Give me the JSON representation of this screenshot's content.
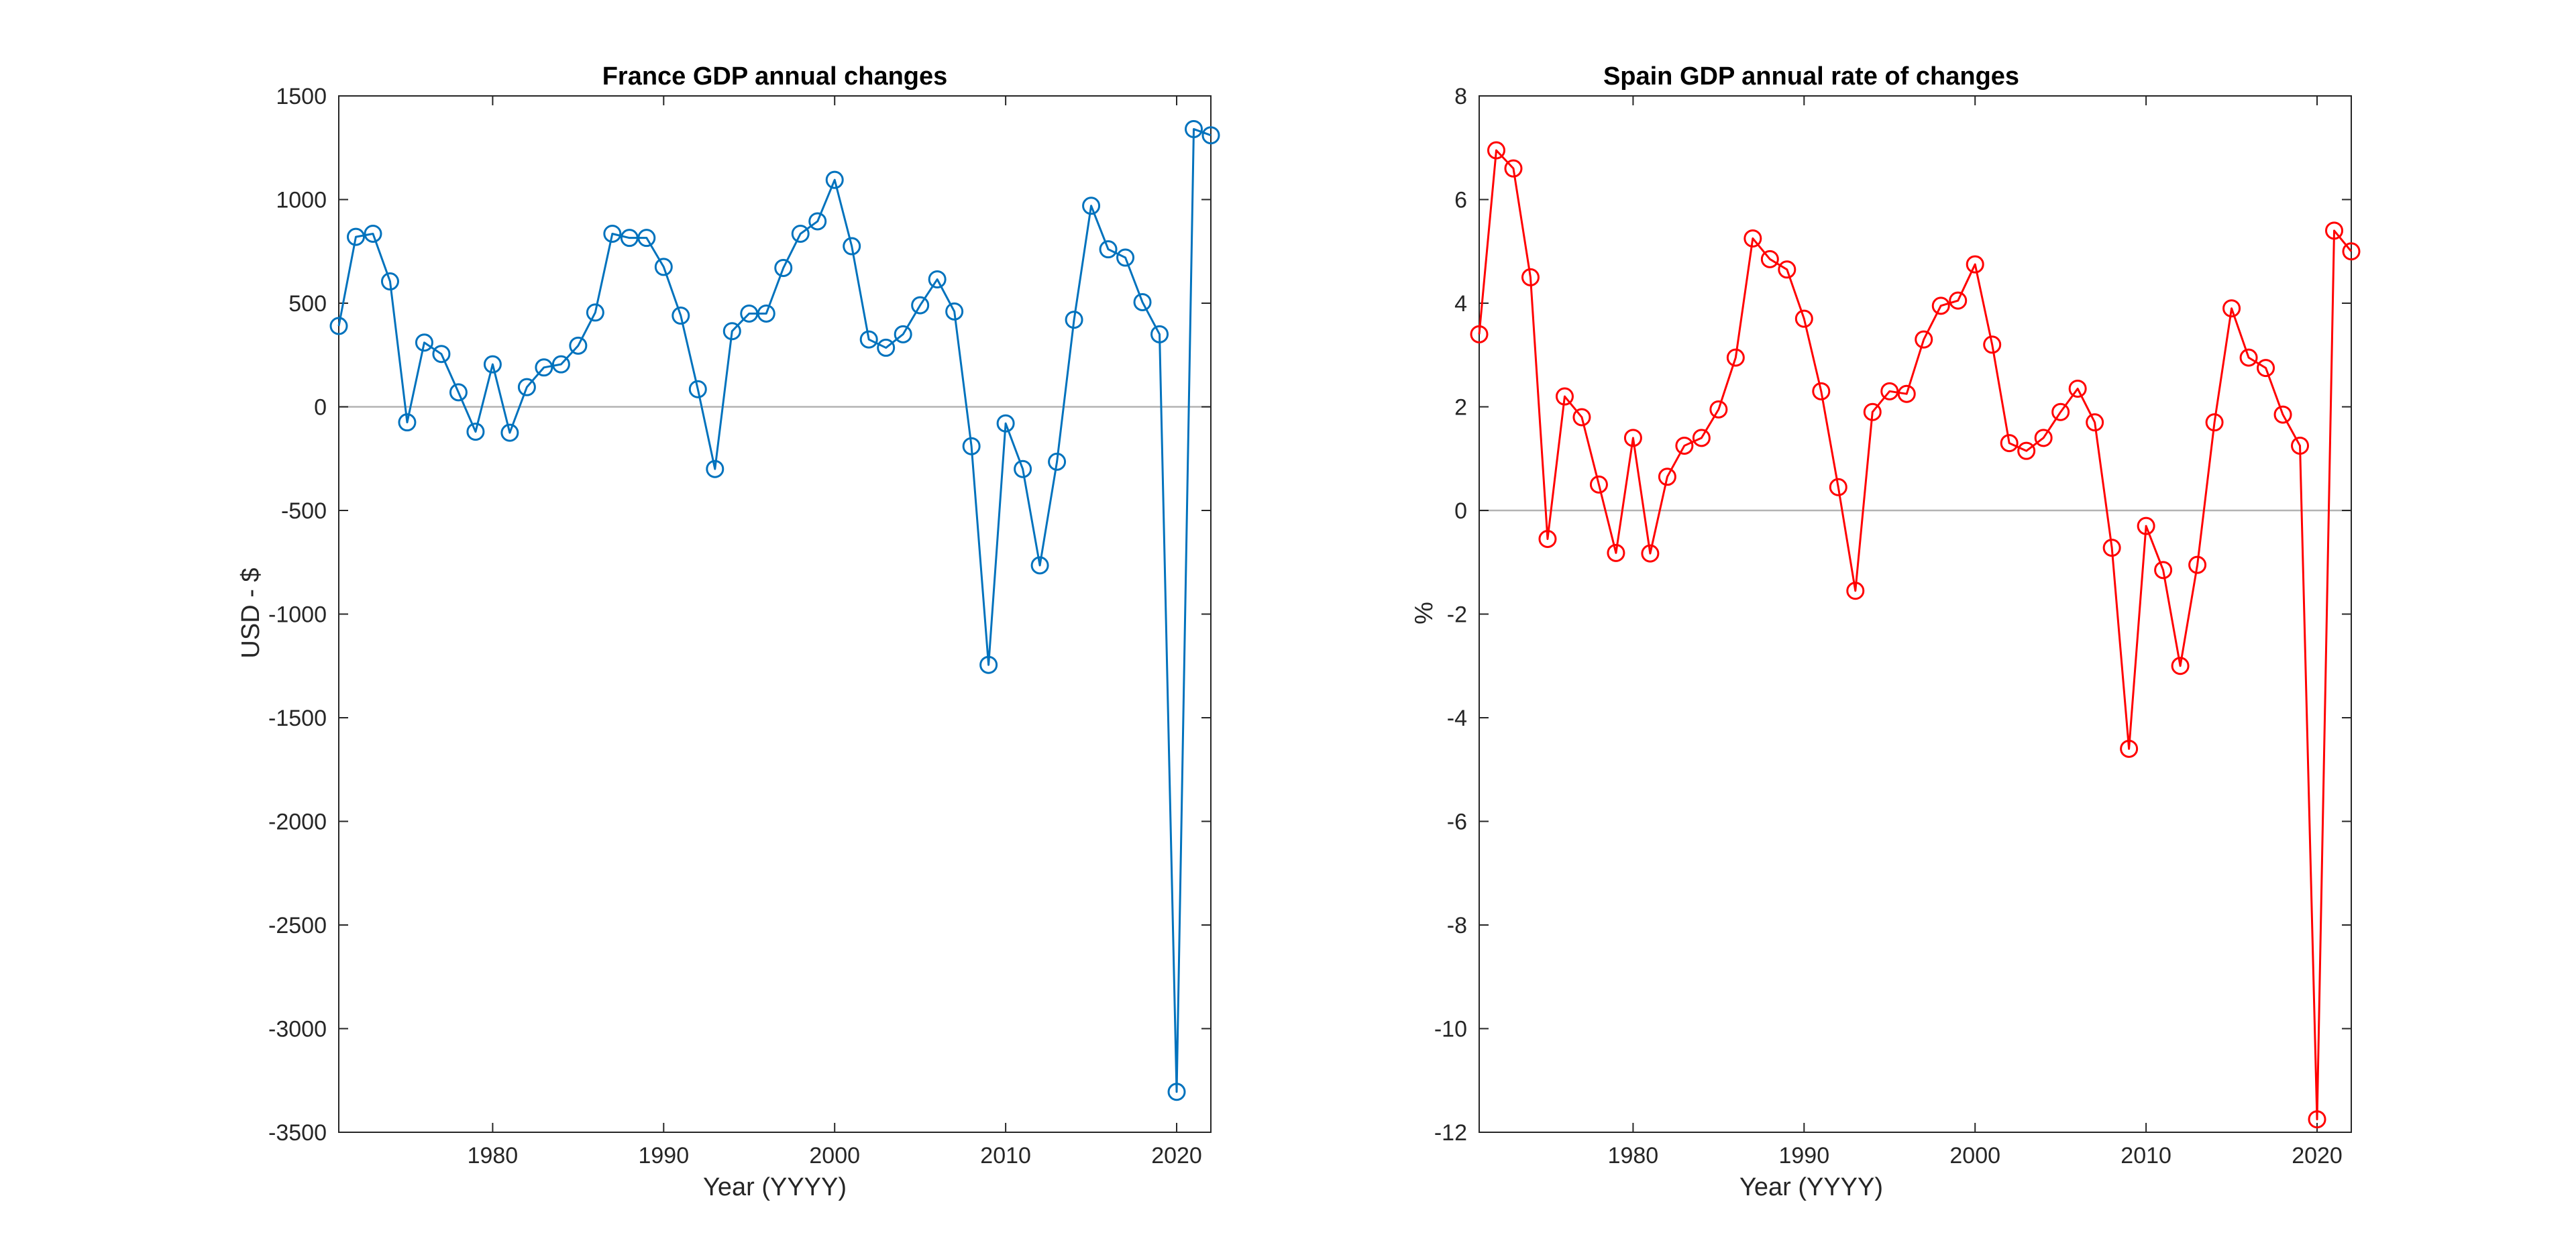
{
  "chart_data": [
    {
      "type": "line",
      "title": "France GDP annual changes",
      "xlabel": "Year (YYYY)",
      "ylabel": "USD - $",
      "xlim": [
        1971,
        2022
      ],
      "ylim": [
        -3500,
        1500
      ],
      "xticks": [
        1980,
        1990,
        2000,
        2010,
        2020
      ],
      "yticks": [
        -3500,
        -3000,
        -2500,
        -2000,
        -1500,
        -1000,
        -500,
        0,
        500,
        1000,
        1500
      ],
      "zero_line": true,
      "grid": false,
      "marker": "circle",
      "color": "#0072BD",
      "series": [
        {
          "x": [
            1971,
            1972,
            1973,
            1974,
            1975,
            1976,
            1977,
            1978,
            1979,
            1980,
            1981,
            1982,
            1983,
            1984,
            1985,
            1986,
            1987,
            1988,
            1989,
            1990,
            1991,
            1992,
            1993,
            1994,
            1995,
            1996,
            1997,
            1998,
            1999,
            2000,
            2001,
            2002,
            2003,
            2004,
            2005,
            2006,
            2007,
            2008,
            2009,
            2010,
            2011,
            2012,
            2013,
            2014,
            2015,
            2016,
            2017,
            2018,
            2019,
            2020,
            2021,
            2022
          ],
          "values": [
            390,
            820,
            835,
            605,
            -75,
            310,
            255,
            70,
            -120,
            205,
            -125,
            95,
            190,
            205,
            295,
            455,
            835,
            815,
            815,
            675,
            440,
            85,
            -300,
            365,
            450,
            450,
            670,
            835,
            895,
            1095,
            775,
            325,
            285,
            350,
            490,
            615,
            460,
            -190,
            -1245,
            -80,
            -300,
            -765,
            -265,
            420,
            970,
            760,
            720,
            505,
            350,
            -3305,
            1340,
            1310
          ]
        }
      ]
    },
    {
      "type": "line",
      "title": "Spain GDP annual rate of changes",
      "xlabel": "Year (YYYY)",
      "ylabel": "%",
      "xlim": [
        1971,
        2022
      ],
      "ylim": [
        -12,
        8
      ],
      "xticks": [
        1980,
        1990,
        2000,
        2010,
        2020
      ],
      "yticks": [
        -12,
        -10,
        -8,
        -6,
        -4,
        -2,
        0,
        2,
        4,
        6,
        8
      ],
      "zero_line": true,
      "grid": false,
      "marker": "circle",
      "color": "#FF0000",
      "series": [
        {
          "x": [
            1971,
            1972,
            1973,
            1974,
            1975,
            1976,
            1977,
            1978,
            1979,
            1980,
            1981,
            1982,
            1983,
            1984,
            1985,
            1986,
            1987,
            1988,
            1989,
            1990,
            1991,
            1992,
            1993,
            1994,
            1995,
            1996,
            1997,
            1998,
            1999,
            2000,
            2001,
            2002,
            2003,
            2004,
            2005,
            2006,
            2007,
            2008,
            2009,
            2010,
            2011,
            2012,
            2013,
            2014,
            2015,
            2016,
            2017,
            2018,
            2019,
            2020,
            2021,
            2022
          ],
          "values": [
            3.4,
            6.95,
            6.6,
            4.5,
            -0.55,
            2.2,
            1.8,
            0.5,
            -0.82,
            1.4,
            -0.83,
            0.65,
            1.25,
            1.4,
            1.95,
            2.95,
            5.25,
            4.85,
            4.65,
            3.7,
            2.3,
            0.45,
            -1.55,
            1.9,
            2.3,
            2.25,
            3.3,
            3.95,
            4.05,
            4.75,
            3.2,
            1.3,
            1.15,
            1.4,
            1.9,
            2.35,
            1.7,
            -0.72,
            -4.6,
            -0.3,
            -1.15,
            -3.0,
            -1.05,
            1.7,
            3.9,
            2.95,
            2.75,
            1.85,
            1.25,
            -11.75,
            5.4,
            5.0
          ]
        }
      ]
    }
  ]
}
